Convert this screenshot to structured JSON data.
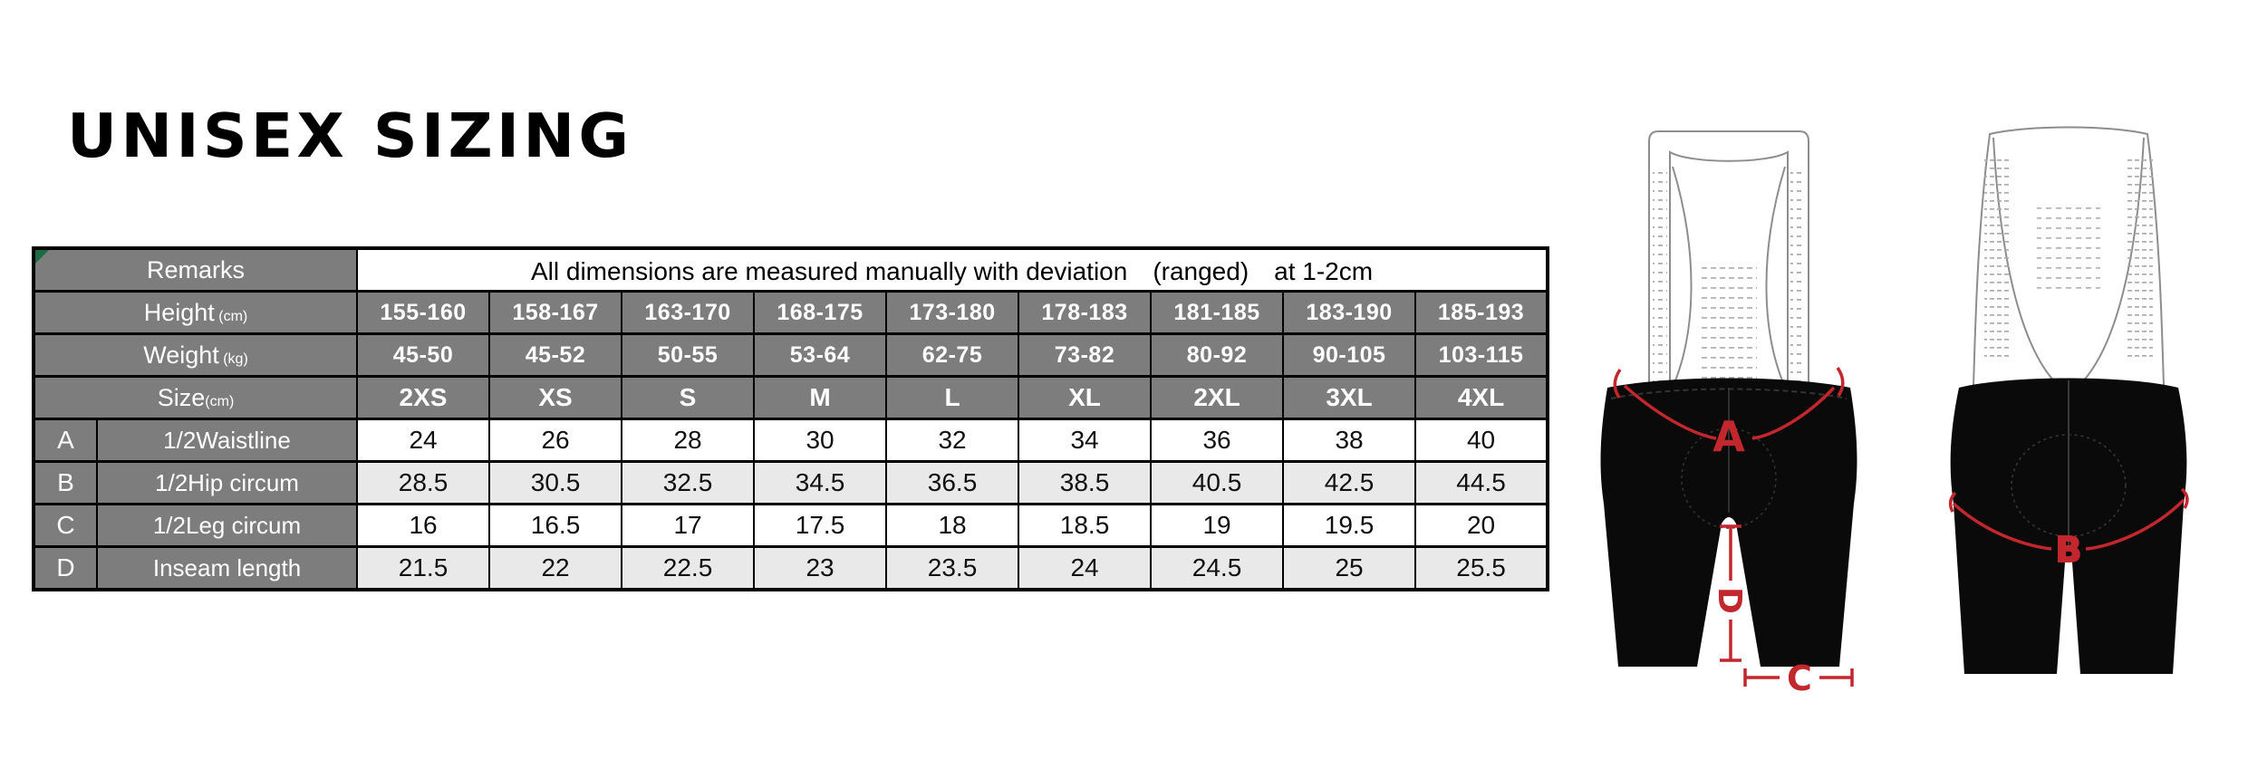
{
  "title": "UNISEX SIZING",
  "table": {
    "remarks_label": "Remarks",
    "remarks_text": "All dimensions are measured manually with deviation　(ranged)　at 1-2cm",
    "header_rows": [
      {
        "label": "Height",
        "unit": " (cm)",
        "values": [
          "155-160",
          "158-167",
          "163-170",
          "168-175",
          "173-180",
          "178-183",
          "181-185",
          "183-190",
          "185-193"
        ]
      },
      {
        "label": "Weight",
        "unit": " (kg)",
        "values": [
          "45-50",
          "45-52",
          "50-55",
          "53-64",
          "62-75",
          "73-82",
          "80-92",
          "90-105",
          "103-115"
        ]
      },
      {
        "label": "Size",
        "unit": "(cm)",
        "values": [
          "2XS",
          "XS",
          "S",
          "M",
          "L",
          "XL",
          "2XL",
          "3XL",
          "4XL"
        ]
      }
    ],
    "measure_rows": [
      {
        "letter": "A",
        "label": "1/2Waistline",
        "values": [
          "24",
          "26",
          "28",
          "30",
          "32",
          "34",
          "36",
          "38",
          "40"
        ]
      },
      {
        "letter": "B",
        "label": "1/2Hip circum",
        "values": [
          "28.5",
          "30.5",
          "32.5",
          "34.5",
          "36.5",
          "38.5",
          "40.5",
          "42.5",
          "44.5"
        ]
      },
      {
        "letter": "C",
        "label": "1/2Leg circum",
        "values": [
          "16",
          "16.5",
          "17",
          "17.5",
          "18",
          "18.5",
          "19",
          "19.5",
          "20"
        ]
      },
      {
        "letter": "D",
        "label": "Inseam length",
        "values": [
          "21.5",
          "22",
          "22.5",
          "23",
          "23.5",
          "24",
          "24.5",
          "25",
          "25.5"
        ]
      }
    ]
  },
  "diagrams": {
    "front": {
      "labels": {
        "waist": "A",
        "inseam": "D",
        "leg": "C"
      }
    },
    "back": {
      "labels": {
        "hip": "B"
      }
    }
  },
  "colors": {
    "header_gray": "#7d7d7d",
    "alt_row_gray": "#e9e9e9",
    "annotation_red": "#c1272d",
    "corner_green": "#1d6b40",
    "shorts_black": "#0a0a0a"
  }
}
